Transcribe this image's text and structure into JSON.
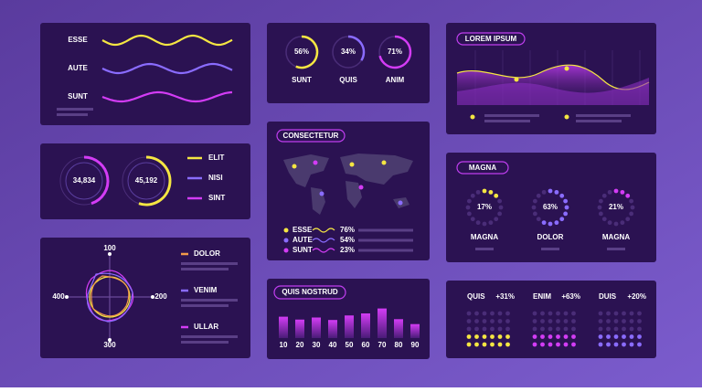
{
  "waves": {
    "labels": [
      "ESSE",
      "AUTE",
      "SUNT"
    ]
  },
  "stats": {
    "values": [
      "34,834",
      "45,192"
    ],
    "legend": [
      "ELIT",
      "NISI",
      "SINT"
    ]
  },
  "radar": {
    "ticks": [
      "100",
      "200",
      "300",
      "400"
    ],
    "legend": [
      "DOLOR",
      "VENIM",
      "ULLAR"
    ]
  },
  "donuts": {
    "items": [
      {
        "name": "SUNT",
        "value": 56,
        "label": "56%"
      },
      {
        "name": "QUIS",
        "value": 34,
        "label": "34%"
      },
      {
        "name": "ANIM",
        "value": 71,
        "label": "71%"
      }
    ]
  },
  "map": {
    "title": "CONSECTETUR",
    "legend": [
      {
        "name": "ESSE",
        "label": "76%"
      },
      {
        "name": "AUTE",
        "label": "54%"
      },
      {
        "name": "SUNT",
        "label": "23%"
      }
    ]
  },
  "bars": {
    "title": "QUIS NOSTRUD",
    "categories": [
      "10",
      "20",
      "30",
      "40",
      "50",
      "60",
      "70",
      "80",
      "90"
    ],
    "values": [
      52,
      45,
      50,
      44,
      55,
      60,
      72,
      46,
      34
    ],
    "ylim": [
      0,
      100
    ]
  },
  "area": {
    "title": "LOREM IPSUM"
  },
  "rings": {
    "title": "MAGNA",
    "items": [
      {
        "name": "MAGNA",
        "value": 17,
        "label": "17%"
      },
      {
        "name": "DOLOR",
        "value": 63,
        "label": "63%"
      },
      {
        "name": "MAGNA",
        "value": 21,
        "label": "21%"
      }
    ]
  },
  "kpis": {
    "items": [
      {
        "name": "QUIS",
        "change": "+31%"
      },
      {
        "name": "ENIM",
        "change": "+63%"
      },
      {
        "name": "DUIS",
        "change": "+20%"
      }
    ]
  }
}
